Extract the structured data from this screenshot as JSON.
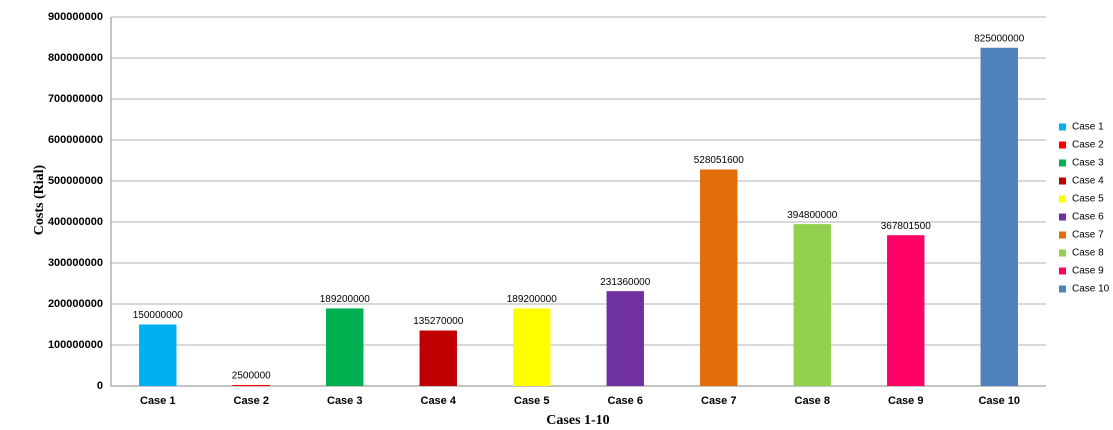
{
  "chart_data": {
    "type": "bar",
    "x_label": "Cases 1-10",
    "y_label": "Costs (Rial)",
    "categories": [
      "Case 1",
      "Case 2",
      "Case 3",
      "Case 4",
      "Case 5",
      "Case 6",
      "Case 7",
      "Case 8",
      "Case 9",
      "Case 10"
    ],
    "values": [
      150000000,
      2500000,
      189200000,
      135270000,
      189200000,
      231360000,
      528051600,
      394800000,
      367801500,
      825000000
    ],
    "colors": [
      "#00b0f0",
      "#ff0000",
      "#00b050",
      "#c00000",
      "#ffff00",
      "#7030a0",
      "#e36c0a",
      "#92d050",
      "#ff0066",
      "#4f81bd"
    ],
    "ylim": [
      0,
      900000000
    ],
    "yticks": [
      0,
      100000000,
      200000000,
      300000000,
      400000000,
      500000000,
      600000000,
      700000000,
      800000000,
      900000000
    ],
    "grid": true,
    "legend": "right"
  }
}
